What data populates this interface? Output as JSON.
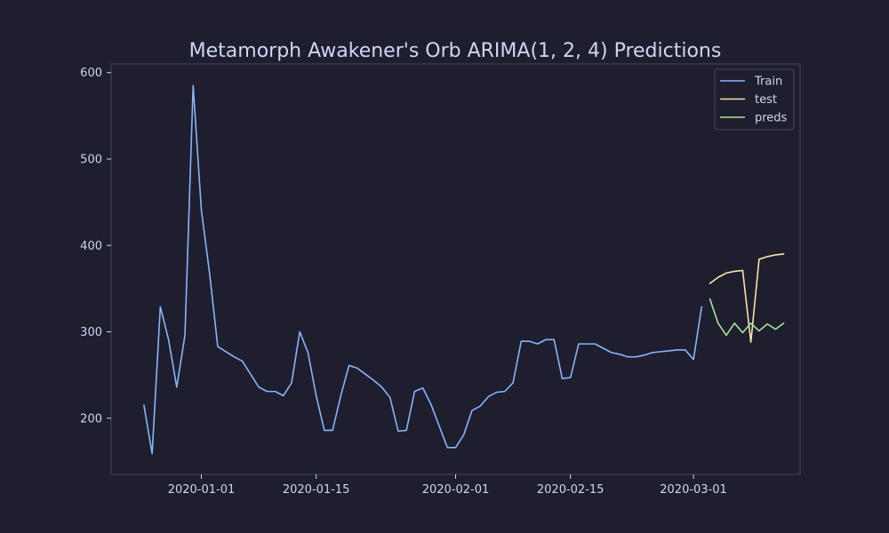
{
  "chart_data": {
    "type": "line",
    "title": "Metamorph Awakener's Orb ARIMA(1, 2, 4) Predictions",
    "xlabel": "",
    "ylabel": "",
    "xlim": [
      "2019-12-21",
      "2020-03-14"
    ],
    "ylim": [
      135,
      610
    ],
    "grid": false,
    "legend_position": "top-right",
    "x_ticks": [
      "2020-01-01",
      "2020-01-15",
      "2020-02-01",
      "2020-02-15",
      "2020-03-01"
    ],
    "y_ticks": [
      200,
      300,
      400,
      500,
      600
    ],
    "colors": {
      "background": "#1e1e2e",
      "text": "#cdd6f4",
      "axes": "#45475a",
      "train": "#89b4fa",
      "test": "#f9e2af",
      "preds": "#a6e3a1"
    },
    "series": [
      {
        "name": "Train",
        "color_key": "train",
        "points": [
          [
            "2019-12-25",
            215
          ],
          [
            "2019-12-26",
            159
          ],
          [
            "2019-12-27",
            329
          ],
          [
            "2019-12-28",
            291
          ],
          [
            "2019-12-29",
            236
          ],
          [
            "2019-12-30",
            296
          ],
          [
            "2019-12-31",
            585
          ],
          [
            "2020-01-01",
            441
          ],
          [
            "2020-01-02",
            368
          ],
          [
            "2020-01-03",
            283
          ],
          [
            "2020-01-04",
            277
          ],
          [
            "2020-01-05",
            271
          ],
          [
            "2020-01-06",
            266
          ],
          [
            "2020-01-07",
            251
          ],
          [
            "2020-01-08",
            236
          ],
          [
            "2020-01-09",
            231
          ],
          [
            "2020-01-10",
            231
          ],
          [
            "2020-01-11",
            226
          ],
          [
            "2020-01-12",
            241
          ],
          [
            "2020-01-13",
            300
          ],
          [
            "2020-01-14",
            276
          ],
          [
            "2020-01-15",
            226
          ],
          [
            "2020-01-16",
            186
          ],
          [
            "2020-01-17",
            186
          ],
          [
            "2020-01-18",
            226
          ],
          [
            "2020-01-19",
            261
          ],
          [
            "2020-01-20",
            258
          ],
          [
            "2020-01-21",
            251
          ],
          [
            "2020-01-22",
            244
          ],
          [
            "2020-01-23",
            236
          ],
          [
            "2020-01-24",
            224
          ],
          [
            "2020-01-25",
            185
          ],
          [
            "2020-01-26",
            186
          ],
          [
            "2020-01-27",
            231
          ],
          [
            "2020-01-28",
            235
          ],
          [
            "2020-01-29",
            216
          ],
          [
            "2020-01-30",
            191
          ],
          [
            "2020-01-31",
            166
          ],
          [
            "2020-02-01",
            166
          ],
          [
            "2020-02-02",
            181
          ],
          [
            "2020-02-03",
            209
          ],
          [
            "2020-02-04",
            214
          ],
          [
            "2020-02-05",
            225
          ],
          [
            "2020-02-06",
            230
          ],
          [
            "2020-02-07",
            231
          ],
          [
            "2020-02-08",
            241
          ],
          [
            "2020-02-09",
            289
          ],
          [
            "2020-02-10",
            289
          ],
          [
            "2020-02-11",
            286
          ],
          [
            "2020-02-12",
            291
          ],
          [
            "2020-02-13",
            291
          ],
          [
            "2020-02-14",
            246
          ],
          [
            "2020-02-15",
            247
          ],
          [
            "2020-02-16",
            286
          ],
          [
            "2020-02-17",
            286
          ],
          [
            "2020-02-18",
            286
          ],
          [
            "2020-02-19",
            281
          ],
          [
            "2020-02-20",
            276
          ],
          [
            "2020-02-21",
            274
          ],
          [
            "2020-02-22",
            271
          ],
          [
            "2020-02-23",
            271
          ],
          [
            "2020-02-24",
            273
          ],
          [
            "2020-02-25",
            276
          ],
          [
            "2020-02-26",
            277
          ],
          [
            "2020-02-27",
            278
          ],
          [
            "2020-02-28",
            279
          ],
          [
            "2020-02-29",
            279
          ],
          [
            "2020-03-01",
            268
          ],
          [
            "2020-03-02",
            329
          ]
        ]
      },
      {
        "name": "test",
        "color_key": "test",
        "points": [
          [
            "2020-03-03",
            356
          ],
          [
            "2020-03-04",
            363
          ],
          [
            "2020-03-05",
            368
          ],
          [
            "2020-03-06",
            370
          ],
          [
            "2020-03-07",
            371
          ],
          [
            "2020-03-08",
            288
          ],
          [
            "2020-03-09",
            384
          ],
          [
            "2020-03-10",
            387
          ],
          [
            "2020-03-11",
            389
          ],
          [
            "2020-03-12",
            390
          ]
        ]
      },
      {
        "name": "preds",
        "color_key": "preds",
        "points": [
          [
            "2020-03-03",
            338
          ],
          [
            "2020-03-04",
            310
          ],
          [
            "2020-03-05",
            296
          ],
          [
            "2020-03-06",
            310
          ],
          [
            "2020-03-07",
            299
          ],
          [
            "2020-03-08",
            310
          ],
          [
            "2020-03-09",
            301
          ],
          [
            "2020-03-10",
            309
          ],
          [
            "2020-03-11",
            303
          ],
          [
            "2020-03-12",
            310
          ]
        ]
      }
    ]
  }
}
